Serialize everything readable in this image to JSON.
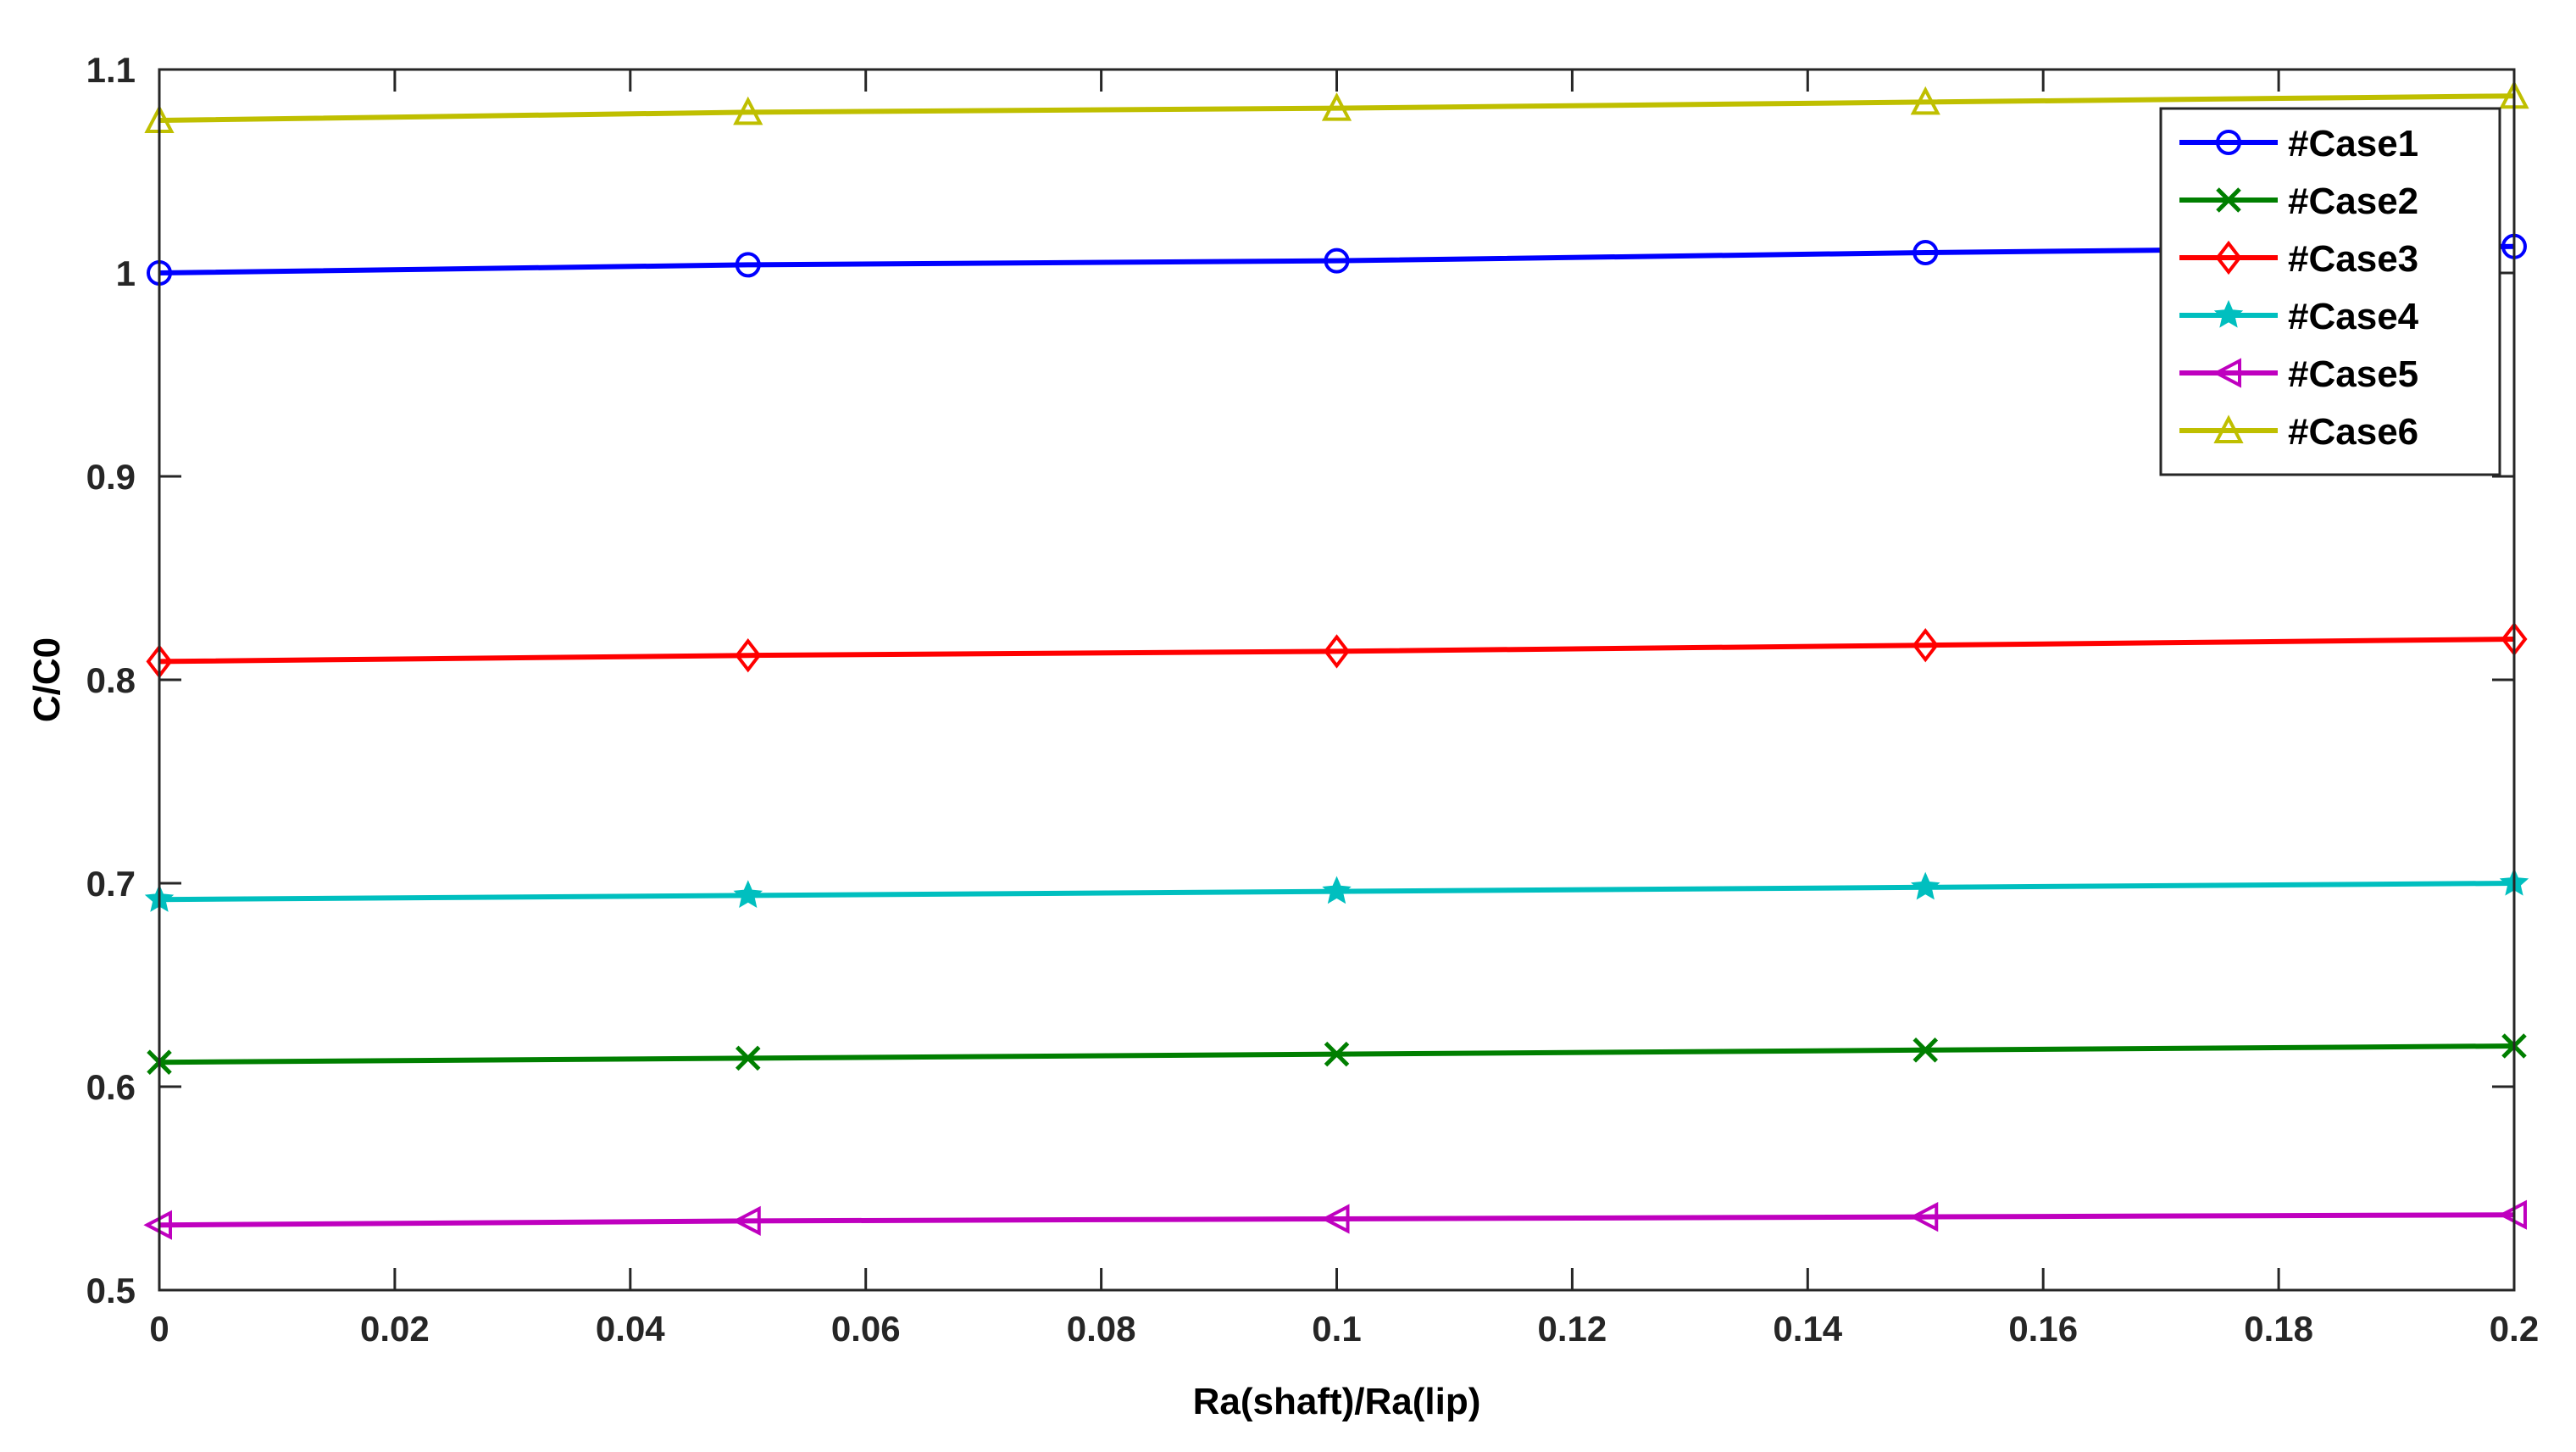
{
  "chart_data": {
    "type": "line",
    "title": "",
    "xlabel": "Ra(shaft)/Ra(lip)",
    "ylabel": "C/C0",
    "x": [
      0,
      0.05,
      0.1,
      0.15,
      0.2
    ],
    "xlim": [
      0,
      0.2
    ],
    "ylim": [
      0.5,
      1.1
    ],
    "xticks": [
      0,
      0.02,
      0.04,
      0.06,
      0.08,
      0.1,
      0.12,
      0.14,
      0.16,
      0.18,
      0.2
    ],
    "xtick_labels": [
      "0",
      "0.02",
      "0.04",
      "0.06",
      "0.08",
      "0.1",
      "0.12",
      "0.14",
      "0.16",
      "0.18",
      "0.2"
    ],
    "yticks": [
      0.5,
      0.6,
      0.7,
      0.8,
      0.9,
      1,
      1.1
    ],
    "ytick_labels": [
      "0.5",
      "0.6",
      "0.7",
      "0.8",
      "0.9",
      "1",
      "1.1"
    ],
    "grid": false,
    "legend_position": "top-right",
    "series": [
      {
        "name": "#Case1",
        "color": "#0000ff",
        "marker": "circle",
        "values": [
          1.0,
          1.004,
          1.006,
          1.01,
          1.013
        ]
      },
      {
        "name": "#Case2",
        "color": "#007f00",
        "marker": "x",
        "values": [
          0.612,
          0.614,
          0.616,
          0.618,
          0.62
        ]
      },
      {
        "name": "#Case3",
        "color": "#ff0000",
        "marker": "diamond",
        "values": [
          0.809,
          0.812,
          0.814,
          0.817,
          0.82
        ]
      },
      {
        "name": "#Case4",
        "color": "#00bfbf",
        "marker": "star",
        "values": [
          0.692,
          0.694,
          0.696,
          0.698,
          0.7
        ]
      },
      {
        "name": "#Case5",
        "color": "#bf00bf",
        "marker": "triangle-left",
        "values": [
          0.532,
          0.534,
          0.535,
          0.536,
          0.537
        ]
      },
      {
        "name": "#Case6",
        "color": "#bfbf00",
        "marker": "triangle-up",
        "values": [
          1.075,
          1.079,
          1.081,
          1.084,
          1.087
        ]
      }
    ]
  }
}
